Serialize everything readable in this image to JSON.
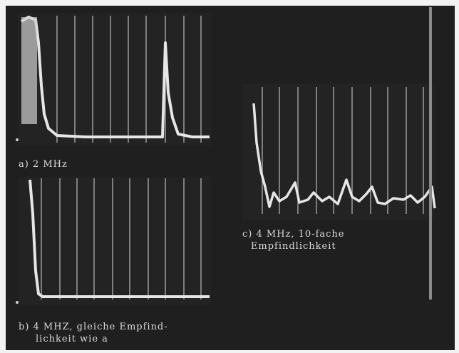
{
  "captions": {
    "a": "a) 2 MHz",
    "b_line1": "b) 4 MHZ, gleiche Empfind-",
    "b_line2": "lichkeit wie a",
    "c_line1": "c) 4 MHz, 10-fache",
    "c_line2": "Empfindlichkeit"
  },
  "colors": {
    "background": "#1f1f1f",
    "trace": "#e6e6e6",
    "grid": "#bdbdbd"
  }
}
